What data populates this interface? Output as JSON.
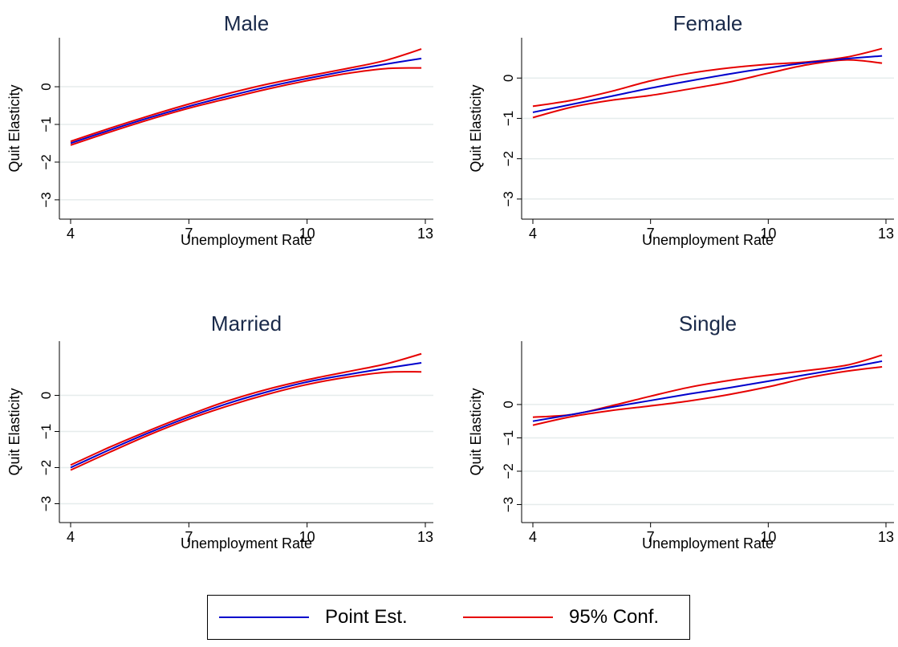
{
  "chart_data": [
    {
      "type": "line",
      "title": "Male",
      "xlabel": "Unemployment Rate",
      "ylabel": "Quit Elasticity",
      "xlim": [
        4,
        13
      ],
      "ylim": [
        -3.3,
        1.3
      ],
      "x_ticks": [
        4,
        7,
        10,
        13
      ],
      "y_ticks": [
        -3,
        -2,
        -1,
        0
      ],
      "grid": true,
      "x": [
        4,
        5,
        6,
        7,
        8,
        9,
        10,
        11,
        12,
        12.9
      ],
      "series": [
        {
          "name": "Point Est.",
          "values": [
            -1.5,
            -1.15,
            -0.82,
            -0.52,
            -0.25,
            0.0,
            0.22,
            0.42,
            0.6,
            0.75
          ]
        },
        {
          "name": "95% Conf.",
          "values": [
            -1.45,
            -1.1,
            -0.77,
            -0.46,
            -0.18,
            0.07,
            0.28,
            0.48,
            0.7,
            1.0
          ]
        },
        {
          "name": "95% Conf.",
          "values": [
            -1.55,
            -1.2,
            -0.87,
            -0.57,
            -0.31,
            -0.06,
            0.16,
            0.35,
            0.48,
            0.5
          ]
        }
      ]
    },
    {
      "type": "line",
      "title": "Female",
      "xlabel": "Unemployment Rate",
      "ylabel": "Quit Elasticity",
      "xlim": [
        4,
        13
      ],
      "ylim": [
        -3.3,
        1.0
      ],
      "x_ticks": [
        4,
        7,
        10,
        13
      ],
      "y_ticks": [
        -3,
        -2,
        -1,
        0
      ],
      "grid": true,
      "x": [
        4,
        5,
        6,
        7,
        8,
        9,
        10,
        11,
        12,
        12.9
      ],
      "series": [
        {
          "name": "Point Est.",
          "values": [
            -0.85,
            -0.65,
            -0.45,
            -0.25,
            -0.07,
            0.1,
            0.25,
            0.38,
            0.48,
            0.55
          ]
        },
        {
          "name": "95% Conf.",
          "values": [
            -0.7,
            -0.55,
            -0.33,
            -0.07,
            0.12,
            0.25,
            0.34,
            0.4,
            0.52,
            0.73
          ]
        },
        {
          "name": "95% Conf.",
          "values": [
            -0.98,
            -0.72,
            -0.55,
            -0.43,
            -0.27,
            -0.1,
            0.12,
            0.33,
            0.45,
            0.37
          ]
        }
      ]
    },
    {
      "type": "line",
      "title": "Married",
      "xlabel": "Unemployment Rate",
      "ylabel": "Quit Elasticity",
      "xlim": [
        4,
        13
      ],
      "ylim": [
        -3.3,
        1.5
      ],
      "x_ticks": [
        4,
        7,
        10,
        13
      ],
      "y_ticks": [
        -3,
        -2,
        -1,
        0
      ],
      "grid": true,
      "x": [
        4,
        5,
        6,
        7,
        8,
        9,
        10,
        11,
        12,
        12.9
      ],
      "series": [
        {
          "name": "Point Est.",
          "values": [
            -2.0,
            -1.5,
            -1.03,
            -0.6,
            -0.22,
            0.1,
            0.37,
            0.57,
            0.75,
            0.9
          ]
        },
        {
          "name": "95% Conf.",
          "values": [
            -1.93,
            -1.43,
            -0.97,
            -0.54,
            -0.15,
            0.17,
            0.43,
            0.65,
            0.87,
            1.15
          ]
        },
        {
          "name": "95% Conf.",
          "values": [
            -2.07,
            -1.57,
            -1.09,
            -0.66,
            -0.29,
            0.03,
            0.3,
            0.5,
            0.64,
            0.65
          ]
        }
      ]
    },
    {
      "type": "line",
      "title": "Single",
      "xlabel": "Unemployment Rate",
      "ylabel": "Quit Elasticity",
      "xlim": [
        4,
        13
      ],
      "ylim": [
        -3.3,
        1.9
      ],
      "x_ticks": [
        4,
        7,
        10,
        13
      ],
      "y_ticks": [
        -3,
        -2,
        -1,
        0
      ],
      "grid": true,
      "x": [
        4,
        5,
        6,
        7,
        8,
        9,
        10,
        11,
        12,
        12.9
      ],
      "series": [
        {
          "name": "Point Est.",
          "values": [
            -0.5,
            -0.3,
            -0.08,
            0.12,
            0.32,
            0.5,
            0.7,
            0.9,
            1.1,
            1.3
          ]
        },
        {
          "name": "95% Conf.",
          "values": [
            -0.38,
            -0.3,
            -0.04,
            0.25,
            0.52,
            0.72,
            0.88,
            1.02,
            1.18,
            1.48
          ]
        },
        {
          "name": "95% Conf.",
          "values": [
            -0.62,
            -0.36,
            -0.18,
            -0.04,
            0.11,
            0.3,
            0.53,
            0.8,
            1.0,
            1.13
          ]
        }
      ]
    }
  ],
  "legend": {
    "point_label": "Point Est.",
    "conf_label": "95% Conf.",
    "point_color": "#0000cc",
    "conf_color": "#e60000"
  },
  "colors": {
    "title": "#1a2a4a",
    "grid": "#e6ecec",
    "axis": "#000000"
  }
}
